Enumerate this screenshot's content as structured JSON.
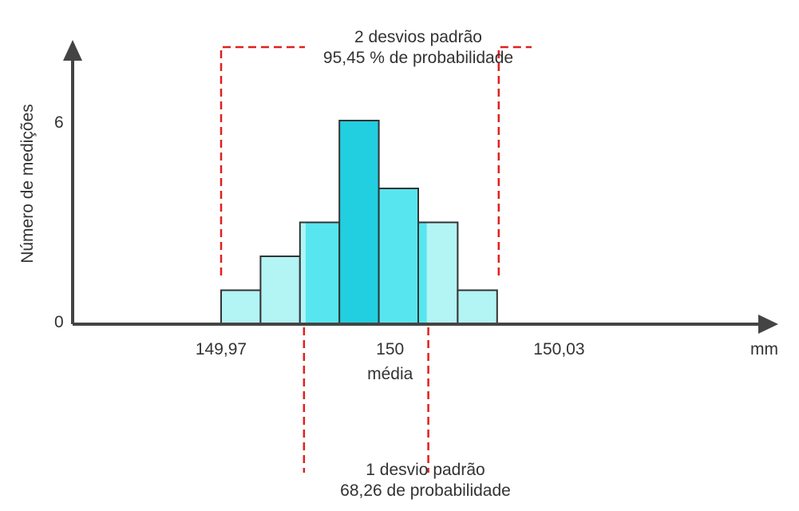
{
  "chart_data": {
    "type": "bar",
    "subtype": "histogram",
    "ylabel": "Número de medições",
    "x_unit": "mm",
    "y_ticks": [
      {
        "value": 0,
        "label": "0"
      },
      {
        "value": 6,
        "label": "6"
      }
    ],
    "x_ticks": [
      {
        "value": 149.97,
        "label": "149,97"
      },
      {
        "value": 150.0,
        "label": "150"
      },
      {
        "value": 150.03,
        "label": "150,03"
      }
    ],
    "mean_label": "média",
    "ylim": [
      0,
      6
    ],
    "bins": [
      {
        "start": 149.97,
        "end": 149.977,
        "value": 1
      },
      {
        "start": 149.977,
        "end": 149.984,
        "value": 2
      },
      {
        "start": 149.984,
        "end": 149.991,
        "value": 3
      },
      {
        "start": 149.991,
        "end": 149.998,
        "value": 6
      },
      {
        "start": 149.998,
        "end": 150.005,
        "value": 4
      },
      {
        "start": 150.005,
        "end": 150.012,
        "value": 3
      },
      {
        "start": 150.012,
        "end": 150.019,
        "value": 1
      }
    ],
    "colors": {
      "light": "#b3f4f5",
      "medium": "#57e6ef",
      "dark": "#22cfe0",
      "border": "#333333",
      "axis": "#444444",
      "dashed": "#e0201f"
    },
    "annotations": {
      "two_sigma": {
        "line1": "2 desvios padrão",
        "line2": "95,45 % de probabilidade",
        "from": 149.97,
        "to": 150.019
      },
      "one_sigma": {
        "line1": "1 desvio padrão",
        "line2": "68,26 de probabilidade",
        "from": 149.985,
        "to": 150.0065
      }
    }
  }
}
